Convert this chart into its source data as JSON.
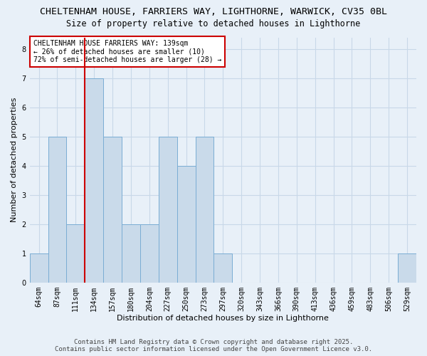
{
  "title_line1": "CHELTENHAM HOUSE, FARRIERS WAY, LIGHTHORNE, WARWICK, CV35 0BL",
  "title_line2": "Size of property relative to detached houses in Lighthorne",
  "xlabel": "Distribution of detached houses by size in Lighthorne",
  "ylabel": "Number of detached properties",
  "categories": [
    "64sqm",
    "87sqm",
    "111sqm",
    "134sqm",
    "157sqm",
    "180sqm",
    "204sqm",
    "227sqm",
    "250sqm",
    "273sqm",
    "297sqm",
    "320sqm",
    "343sqm",
    "366sqm",
    "390sqm",
    "413sqm",
    "436sqm",
    "459sqm",
    "483sqm",
    "506sqm",
    "529sqm"
  ],
  "values": [
    1,
    5,
    2,
    7,
    5,
    2,
    2,
    5,
    4,
    5,
    1,
    0,
    0,
    0,
    0,
    0,
    0,
    0,
    0,
    0,
    1
  ],
  "bar_color": "#c9daea",
  "bar_edge_color": "#7aadd4",
  "red_line_index": 3,
  "red_line_color": "#cc0000",
  "annotation_text": "CHELTENHAM HOUSE FARRIERS WAY: 139sqm\n← 26% of detached houses are smaller (10)\n72% of semi-detached houses are larger (28) →",
  "annotation_box_color": "#ffffff",
  "annotation_box_edge_color": "#cc0000",
  "ylim": [
    0,
    8.4
  ],
  "yticks": [
    0,
    1,
    2,
    3,
    4,
    5,
    6,
    7,
    8
  ],
  "grid_color": "#c8d8e8",
  "background_color": "#e8f0f8",
  "footer_line1": "Contains HM Land Registry data © Crown copyright and database right 2025.",
  "footer_line2": "Contains public sector information licensed under the Open Government Licence v3.0.",
  "title_fontsize": 9.5,
  "subtitle_fontsize": 8.5,
  "axis_label_fontsize": 8,
  "tick_fontsize": 7,
  "annotation_fontsize": 7,
  "footer_fontsize": 6.5
}
